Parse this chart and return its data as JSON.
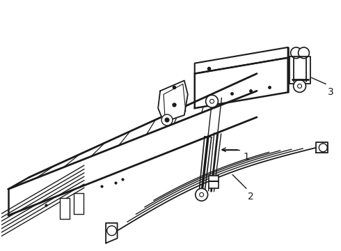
{
  "bg_color": "#ffffff",
  "line_color": "#1a1a1a",
  "label_color": "#111111",
  "figsize": [
    4.9,
    3.6
  ],
  "dpi": 100
}
